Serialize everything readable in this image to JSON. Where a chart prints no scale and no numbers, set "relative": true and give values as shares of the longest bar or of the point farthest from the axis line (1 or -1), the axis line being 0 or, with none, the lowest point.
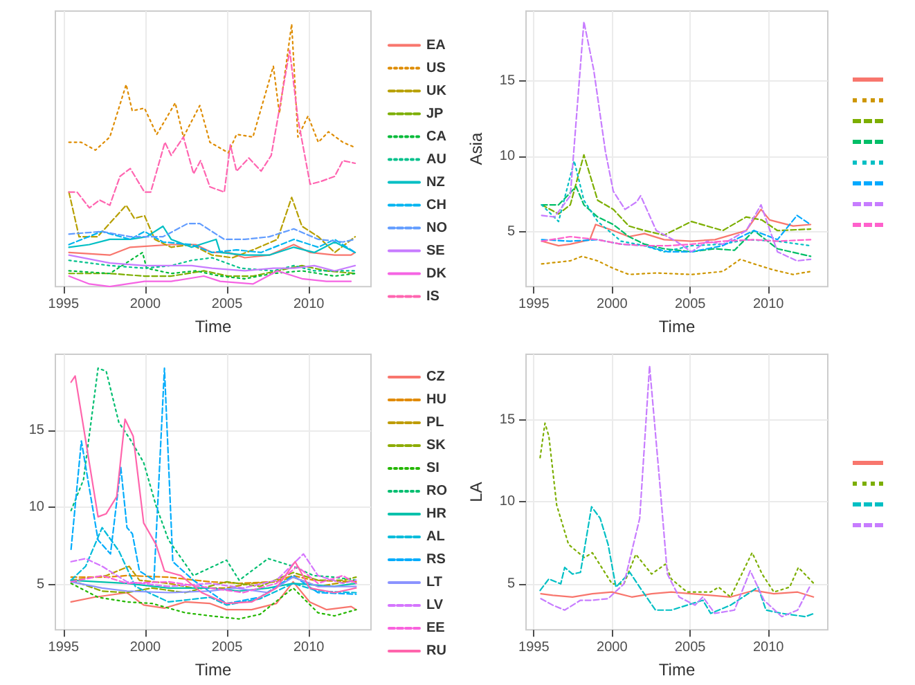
{
  "chart_data": [
    {
      "type": "line",
      "relative": true,
      "xlabel": "Time",
      "xlim": [
        1994.5,
        2013.8
      ],
      "xticks": [
        1995,
        2000,
        2005,
        2010
      ],
      "grid": "x",
      "legend": "right",
      "series": [
        {
          "name": "EA",
          "color": "#f8766d",
          "line_style": "solid",
          "x": [
            1995.33,
            1997.83,
            1999.08,
            2001.58,
            2003.08,
            2004.08,
            2005.08,
            2006.08,
            2007.58,
            2009.08,
            2010.08,
            2011.58,
            2012.58,
            2012.83
          ],
          "values": [
            0.13,
            0.12,
            0.15,
            0.16,
            0.16,
            0.13,
            0.13,
            0.11,
            0.12,
            0.16,
            0.13,
            0.12,
            0.12,
            0.13
          ]
        },
        {
          "name": "US",
          "color": "#de8c00",
          "line_style": "dotted",
          "x": [
            1995.33,
            1996.08,
            1996.95,
            1997.83,
            1998.83,
            1999.2,
            1999.95,
            2000.7,
            2001.83,
            2002.33,
            2003.33,
            2003.95,
            2005.08,
            2005.58,
            2006.58,
            2007.83,
            2008.2,
            2008.95,
            2009.33,
            2009.95,
            2010.58,
            2011.2,
            2012.08,
            2012.83
          ],
          "values": [
            0.55,
            0.55,
            0.52,
            0.57,
            0.77,
            0.67,
            0.68,
            0.58,
            0.7,
            0.57,
            0.69,
            0.55,
            0.51,
            0.58,
            0.57,
            0.84,
            0.66,
            1,
            0.57,
            0.65,
            0.55,
            0.59,
            0.55,
            0.53
          ]
        },
        {
          "name": "UK",
          "color": "#b79f00",
          "line_style": "dashed",
          "x": [
            1995.33,
            1995.95,
            1997.08,
            1998.83,
            1999.33,
            1999.95,
            2000.58,
            2001.58,
            2002.83,
            2004.08,
            2005.33,
            2006.58,
            2008.08,
            2008.95,
            2009.58,
            2010.58,
            2011.58,
            2012.83
          ],
          "values": [
            0.36,
            0.19,
            0.19,
            0.31,
            0.26,
            0.27,
            0.18,
            0.15,
            0.16,
            0.12,
            0.11,
            0.14,
            0.18,
            0.34,
            0.23,
            0.19,
            0.13,
            0.19
          ]
        },
        {
          "name": "JP",
          "color": "#7cae00",
          "line_style": "dashed",
          "x": [
            1995.33,
            1997.83,
            1999.95,
            2001.58,
            2003.58,
            2005.08,
            2006.58,
            2008.08,
            2009.58,
            2011.08,
            2012.83
          ],
          "values": [
            0.05,
            0.05,
            0.04,
            0.04,
            0.06,
            0.04,
            0.04,
            0.06,
            0.08,
            0.06,
            0.05
          ]
        },
        {
          "name": "CA",
          "color": "#00ba38",
          "line_style": "dotted",
          "x": [
            1995.33,
            1997.83,
            1999.83,
            2000.08,
            2001.58,
            2003.08,
            2004.58,
            2006.08,
            2007.83,
            2009.58,
            2011.58,
            2012.83
          ],
          "values": [
            0.06,
            0.05,
            0.13,
            0.07,
            0.05,
            0.06,
            0.04,
            0.03,
            0.05,
            0.06,
            0.04,
            0.05
          ]
        },
        {
          "name": "AU",
          "color": "#00c08b",
          "line_style": "dotted",
          "x": [
            1995.33,
            1997.83,
            1999.95,
            2001.58,
            2002.83,
            2004.08,
            2005.83,
            2007.83,
            2009.08,
            2010.33,
            2012.83
          ],
          "values": [
            0.1,
            0.08,
            0.07,
            0.08,
            0.1,
            0.11,
            0.07,
            0.06,
            0.08,
            0.06,
            0.06
          ]
        },
        {
          "name": "NZ",
          "color": "#00bfc4",
          "line_style": "solid",
          "x": [
            1995.33,
            1996.58,
            1997.83,
            1999.08,
            2000.08,
            2001.08,
            2001.58,
            2002.83,
            2004.33,
            2004.58,
            2006.08,
            2007.58,
            2009.08,
            2010.33,
            2011.58,
            2012.83
          ],
          "values": [
            0.15,
            0.16,
            0.18,
            0.18,
            0.19,
            0.23,
            0.18,
            0.15,
            0.18,
            0.13,
            0.12,
            0.12,
            0.15,
            0.13,
            0.17,
            0.13
          ]
        },
        {
          "name": "CH",
          "color": "#00b4f0",
          "line_style": "dashed",
          "x": [
            1995.33,
            1997.33,
            1999.08,
            1999.95,
            2001.08,
            2002.83,
            2004.08,
            2005.58,
            2007.08,
            2009.08,
            2010.58,
            2011.58,
            2012.83
          ],
          "values": [
            0.16,
            0.21,
            0.18,
            0.21,
            0.17,
            0.16,
            0.13,
            0.14,
            0.13,
            0.18,
            0.15,
            0.18,
            0.13
          ]
        },
        {
          "name": "NO",
          "color": "#619cff",
          "line_style": "dashed",
          "x": [
            1995.33,
            1997.33,
            1999.08,
            2001.08,
            2002.58,
            2003.33,
            2004.83,
            2006.08,
            2007.58,
            2009.08,
            2010.58,
            2012.08,
            2012.83
          ],
          "values": [
            0.2,
            0.21,
            0.19,
            0.19,
            0.24,
            0.24,
            0.18,
            0.18,
            0.19,
            0.22,
            0.18,
            0.17,
            0.18
          ]
        },
        {
          "name": "SE",
          "color": "#c77cff",
          "line_style": "solid",
          "x": [
            1995.33,
            1997.83,
            1999.95,
            2001.58,
            2002.83,
            2004.08,
            2006.08,
            2007.83,
            2009.08,
            2010.33,
            2011.58,
            2012.83
          ],
          "values": [
            0.12,
            0.09,
            0.08,
            0.08,
            0.08,
            0.07,
            0.06,
            0.07,
            0.07,
            0.08,
            0.06,
            0.08
          ]
        },
        {
          "name": "DK",
          "color": "#f564e3",
          "line_style": "solid",
          "x": [
            1995.33,
            1996.58,
            1997.83,
            1999.95,
            2001.58,
            2003.58,
            2004.58,
            2006.58,
            2008.08,
            2009.58,
            2011.08,
            2012.58
          ],
          "values": [
            0.04,
            0.01,
            0,
            0.02,
            0.02,
            0.04,
            0.02,
            0.01,
            0.06,
            0.03,
            0.02,
            0.02
          ]
        },
        {
          "name": "IS",
          "color": "#ff64b0",
          "line_style": "dashed",
          "x": [
            1995.33,
            1995.83,
            1996.58,
            1997.2,
            1997.83,
            1998.45,
            1999.08,
            1999.95,
            2000.33,
            2001.2,
            2001.58,
            2002.33,
            2002.95,
            2003.38,
            2003.95,
            2004.83,
            2005.2,
            2005.58,
            2006.33,
            2007.08,
            2007.7,
            2008.83,
            2009.33,
            2010.08,
            2010.7,
            2011.58,
            2012.08,
            2012.83
          ],
          "values": [
            0.36,
            0.36,
            0.3,
            0.33,
            0.31,
            0.42,
            0.45,
            0.36,
            0.36,
            0.55,
            0.5,
            0.57,
            0.43,
            0.48,
            0.38,
            0.36,
            0.54,
            0.44,
            0.49,
            0.44,
            0.5,
            0.9,
            0.64,
            0.39,
            0.4,
            0.42,
            0.48,
            0.47
          ]
        }
      ]
    },
    {
      "type": "line",
      "xlabel": "Time",
      "ylabel": "Asia",
      "xlim": [
        1994.5,
        2013.8
      ],
      "xticks": [
        1995,
        2000,
        2005,
        2010
      ],
      "ylim": [
        1.4,
        19.6
      ],
      "yticks": [
        5,
        10,
        15
      ],
      "grid": true,
      "legend": "right",
      "series": [
        {
          "color": "#f8766d",
          "line_style": "solid",
          "x": [
            1995.5,
            1996.58,
            1997.33,
            1998.58,
            1998.95,
            2000.08,
            2001.08,
            2002.08,
            2003.33,
            2005.08,
            2006.58,
            2008.58,
            2009.53,
            2010.08,
            2011.58,
            2012.7
          ],
          "values": [
            4.4,
            4.1,
            4.2,
            4.5,
            5.5,
            5.1,
            4.7,
            4.9,
            4.5,
            4.4,
            4.5,
            5.1,
            6.5,
            5.8,
            5.4,
            5.5
          ]
        },
        {
          "color": "#cd9600",
          "line_style": "dotted",
          "x": [
            1995.5,
            1997.33,
            1998.08,
            1999.08,
            2000.08,
            2001.08,
            2002.83,
            2005.08,
            2007.08,
            2008.2,
            2009.08,
            2010.33,
            2011.58,
            2012.7
          ],
          "values": [
            2.9,
            3.1,
            3.4,
            3.1,
            2.6,
            2.2,
            2.3,
            2.2,
            2.4,
            3.2,
            2.9,
            2.5,
            2.2,
            2.4
          ]
        },
        {
          "color": "#7cae00",
          "line_style": "dashed",
          "x": [
            1995.5,
            1996.58,
            1997.33,
            1998.2,
            1999.08,
            2000.08,
            2001.08,
            2002.08,
            2003.33,
            2005.08,
            2007.08,
            2008.58,
            2009.58,
            2010.58,
            2012.7
          ],
          "values": [
            6.8,
            6.2,
            6.8,
            10.1,
            7.1,
            6.5,
            5.4,
            5.1,
            4.8,
            5.7,
            5.1,
            6,
            5.8,
            5.1,
            5.2
          ]
        },
        {
          "color": "#00be67",
          "line_style": "dashed",
          "x": [
            1995.5,
            1996.58,
            1997.7,
            1998.2,
            1999.08,
            2000.08,
            2001.08,
            2002.08,
            2003.33,
            2005.08,
            2006.58,
            2007.83,
            2009.08,
            2010.58,
            2012.7
          ],
          "values": [
            6.8,
            6.8,
            8,
            6.8,
            6,
            5.5,
            4.7,
            4.2,
            3.9,
            3.7,
            3.9,
            3.8,
            5.1,
            3.9,
            3.4
          ]
        },
        {
          "color": "#00bfc4",
          "line_style": "dotted",
          "x": [
            1995.5,
            1996.58,
            1997.58,
            1998.2,
            1999.08,
            2000.58,
            2002.08,
            2003.33,
            2005.08,
            2007.08,
            2008.58,
            2010.58,
            2012.7
          ],
          "values": [
            6.8,
            5.7,
            9.7,
            7.1,
            5.7,
            4.4,
            4.1,
            3.7,
            4.1,
            4.2,
            4.5,
            4.4,
            4.1
          ]
        },
        {
          "color": "#00a9ff",
          "line_style": "dashed",
          "x": [
            1995.5,
            1997.33,
            1999.08,
            2000.58,
            2002.08,
            2003.58,
            2005.08,
            2007.08,
            2009.08,
            2010.58,
            2011.83,
            2012.7
          ],
          "values": [
            4.5,
            4.4,
            4.5,
            4.2,
            4.1,
            3.7,
            3.7,
            4.1,
            5.1,
            4.5,
            6.1,
            5.5
          ]
        },
        {
          "color": "#c77cff",
          "line_style": "dashed",
          "x": [
            1995.5,
            1996.33,
            1997.33,
            1998.2,
            1998.83,
            1999.58,
            2000.08,
            2000.83,
            2001.58,
            2001.83,
            2002.83,
            2004.08,
            2005.08,
            2006.08,
            2007.08,
            2008.58,
            2009.53,
            2010.58,
            2011.83,
            2012.7
          ],
          "values": [
            6.1,
            6,
            7.4,
            18.9,
            15.7,
            10.3,
            7.7,
            6.5,
            7,
            7.4,
            5.1,
            4.4,
            3.7,
            4.4,
            4.2,
            5.1,
            6.8,
            3.7,
            3.1,
            3.2
          ]
        },
        {
          "color": "#ff61cc",
          "line_style": "dashed",
          "x": [
            1995.5,
            1997.33,
            1999.08,
            2000.58,
            2002.08,
            2003.58,
            2005.08,
            2007.08,
            2009.08,
            2010.58,
            2012.7
          ],
          "values": [
            4.4,
            4.7,
            4.5,
            4.2,
            4.1,
            4.1,
            4.2,
            4.4,
            4.5,
            4.4,
            4.5
          ]
        }
      ]
    },
    {
      "type": "line",
      "xlabel": "Time",
      "xlim": [
        1994.5,
        2013.8
      ],
      "xticks": [
        1995,
        2000,
        2005,
        2010
      ],
      "ylim": [
        2.1,
        19.9
      ],
      "yticks": [
        5,
        10,
        15
      ],
      "grid": true,
      "legend": "right",
      "series": [
        {
          "name": "CZ",
          "color": "#f8766d",
          "line_style": "solid",
          "x": [
            1995.46,
            1996.85,
            1998.88,
            1999.9,
            2001.17,
            2002.44,
            2003.96,
            2004.97,
            2006.5,
            2008.02,
            2009.04,
            2010.05,
            2011.07,
            2012.59,
            2012.89
          ],
          "values": [
            3.9,
            4.2,
            4.5,
            3.7,
            3.5,
            3.9,
            3.8,
            3.4,
            3.4,
            3.8,
            5.2,
            3.9,
            3.4,
            3.6,
            3.4
          ]
        },
        {
          "name": "HU",
          "color": "#e18a00",
          "line_style": "dashed",
          "x": [
            1995.46,
            1997.61,
            1998.88,
            2001.42,
            2003.96,
            2005.74,
            2007.77,
            2009.04,
            2010.3,
            2012.89
          ],
          "values": [
            5.5,
            5.5,
            5.6,
            5.5,
            5.2,
            5.1,
            5.2,
            5.6,
            5.3,
            5.2
          ]
        },
        {
          "name": "PL",
          "color": "#be9c00",
          "line_style": "dashed",
          "x": [
            1995.46,
            1997.61,
            1999.01,
            1999.64,
            2001.42,
            2002.94,
            2004.97,
            2006.5,
            2008.02,
            2009.04,
            2010.56,
            2012.89
          ],
          "values": [
            5.3,
            5.6,
            6.2,
            5.3,
            5.1,
            4.8,
            4.8,
            5.1,
            5.2,
            5.5,
            4.9,
            5.3
          ]
        },
        {
          "name": "SK",
          "color": "#8cab00",
          "line_style": "dashed",
          "x": [
            1995.46,
            1997.36,
            1998.88,
            2000.41,
            2002.44,
            2004.97,
            2007.01,
            2009.04,
            2010.56,
            2012.08,
            2012.89
          ],
          "values": [
            5.3,
            4.6,
            4.5,
            4.8,
            4.5,
            5.2,
            4.9,
            5.8,
            5.3,
            5.3,
            5.5
          ]
        },
        {
          "name": "SI",
          "color": "#24b700",
          "line_style": "dotted",
          "x": [
            1995.46,
            1997.11,
            1998.88,
            2000.41,
            2002.44,
            2003.96,
            2005.74,
            2007.01,
            2009.04,
            2010.56,
            2011.57,
            2012.89
          ],
          "values": [
            5.1,
            4.2,
            3.9,
            3.8,
            3.2,
            3,
            2.8,
            3.1,
            4.8,
            3.2,
            3,
            3.4
          ]
        },
        {
          "name": "RO",
          "color": "#00be70",
          "line_style": "dotted",
          "x": [
            1995.46,
            1996.22,
            1997.11,
            1997.61,
            1998.38,
            1999.14,
            1999.9,
            2000.66,
            2001.42,
            2002.94,
            2004.97,
            2005.74,
            2007.51,
            2009.04,
            2010.3,
            2011.57,
            2012.89
          ],
          "values": [
            9.8,
            11.8,
            19,
            18.8,
            15.5,
            14.3,
            12.9,
            10.1,
            7.9,
            5.6,
            6.6,
            5.3,
            6.7,
            6.2,
            5.6,
            5.5,
            5.3
          ]
        },
        {
          "name": "HR",
          "color": "#00c1ab",
          "line_style": "solid",
          "x": [
            1995.46,
            1997.11,
            1998.88,
            2001.42,
            2003.96,
            2005.74,
            2007.51,
            2009.04,
            2011.57,
            2012.89
          ],
          "values": [
            5.3,
            5.2,
            5.1,
            4.8,
            4.8,
            4.6,
            4.8,
            5.1,
            4.9,
            5.1
          ]
        },
        {
          "name": "AL",
          "color": "#00bbda",
          "line_style": "dashed",
          "x": [
            1995.46,
            1996.35,
            1997.36,
            1998.38,
            1999.39,
            2001.42,
            2003.96,
            2004.97,
            2007.01,
            2009.04,
            2010.56,
            2012.89
          ],
          "values": [
            5.3,
            6.2,
            8.7,
            7.2,
            4.9,
            3.9,
            4.2,
            3.7,
            4.1,
            5.1,
            4.6,
            4.5
          ]
        },
        {
          "name": "RS",
          "color": "#00acfc",
          "line_style": "dashed",
          "x": [
            1995.46,
            1996.09,
            1997.11,
            1997.87,
            1998.5,
            1998.88,
            1999.21,
            1999.64,
            2000.53,
            2001.17,
            2001.68,
            2002.94,
            2004.97,
            2007.01,
            2009.04,
            2010.56,
            2012.89
          ],
          "values": [
            7.3,
            14.3,
            7.9,
            7,
            12.6,
            8.7,
            8.3,
            5.9,
            5.3,
            19,
            6.5,
            5.3,
            3.8,
            4.2,
            5.6,
            4.5,
            4.4
          ]
        },
        {
          "name": "LT",
          "color": "#8b93ff",
          "line_style": "solid",
          "x": [
            1995.46,
            1997.36,
            1998.88,
            2001.42,
            2003.96,
            2005.48,
            2007.51,
            2009.04,
            2010.56,
            2012.89
          ],
          "values": [
            5.2,
            4.8,
            4.6,
            4.5,
            4.6,
            4.8,
            4.5,
            5.5,
            4.9,
            4.9
          ]
        },
        {
          "name": "LV",
          "color": "#d575fe",
          "line_style": "dashed",
          "x": [
            1995.46,
            1996.35,
            1997.36,
            1998.88,
            2001.42,
            2003.96,
            2005.99,
            2008.02,
            2009.67,
            2010.56,
            2012.08,
            2012.89
          ],
          "values": [
            6.5,
            6.7,
            6.2,
            5.2,
            4.9,
            5.1,
            4.8,
            5.3,
            7,
            5.6,
            5.1,
            5.3
          ]
        },
        {
          "name": "EE",
          "color": "#f962dd",
          "line_style": "dashed",
          "x": [
            1995.46,
            1997.36,
            1998.88,
            2001.42,
            2003.96,
            2005.99,
            2008.02,
            2009.29,
            2010.56,
            2012.08,
            2012.89
          ],
          "values": [
            5.2,
            5.6,
            5.1,
            5.2,
            4.8,
            4.5,
            5.1,
            6.2,
            5.1,
            5.6,
            5.1
          ]
        },
        {
          "name": "RU",
          "color": "#ff65ac",
          "line_style": "solid",
          "x": [
            1995.46,
            1995.71,
            1996.22,
            1997.11,
            1997.61,
            1998.25,
            1998.76,
            1999.26,
            1999.9,
            2000.66,
            2001.17,
            2002.18,
            2003.45,
            2004.97,
            2006.5,
            2008.02,
            2009.16,
            2010.05,
            2011.57,
            2012.89
          ],
          "values": [
            18.1,
            18.5,
            15.2,
            9.4,
            9.6,
            10.7,
            15.7,
            14.6,
            9,
            7.6,
            5.9,
            5.6,
            4.5,
            3.8,
            3.9,
            4.8,
            6.5,
            4.8,
            4.5,
            4.8
          ]
        }
      ]
    },
    {
      "type": "line",
      "xlabel": "Time",
      "ylabel": "LA",
      "xlim": [
        1994.5,
        2013.8
      ],
      "xticks": [
        1995,
        2000,
        2005,
        2010
      ],
      "ylim": [
        2.2,
        19.0
      ],
      "yticks": [
        5,
        10,
        15
      ],
      "grid": true,
      "legend": "right",
      "series": [
        {
          "color": "#f8766d",
          "line_style": "solid",
          "x": [
            1995.45,
            1996.21,
            1997.47,
            1998.74,
            2000,
            2001.26,
            2002.53,
            2003.79,
            2005.05,
            2006.31,
            2007.58,
            2009.09,
            2010.35,
            2011.87,
            2012.88
          ],
          "values": [
            4.4,
            4.3,
            4.2,
            4.4,
            4.5,
            4.2,
            4.4,
            4.5,
            4.4,
            4.3,
            4.2,
            4.6,
            4.4,
            4.5,
            4.2
          ]
        },
        {
          "color": "#7cae00",
          "line_style": "dotted",
          "x": [
            1995.4,
            1995.71,
            1995.96,
            1996.46,
            1997.22,
            1998.23,
            1998.74,
            2000,
            2000.76,
            2001.52,
            2002.53,
            2003.41,
            2003.79,
            2004.8,
            2006.31,
            2006.82,
            2007.58,
            2008.96,
            2009.6,
            2010.35,
            2011.36,
            2011.92,
            2012.93
          ],
          "values": [
            12.7,
            14.8,
            14,
            9.8,
            7.4,
            6.6,
            6.9,
            5,
            5,
            6.8,
            5.6,
            6.2,
            5.3,
            4.5,
            4.5,
            4.8,
            4.2,
            6.9,
            5.6,
            4.5,
            4.8,
            6,
            5
          ]
        },
        {
          "color": "#00bfc4",
          "line_style": "dashed",
          "x": [
            1995.4,
            1995.96,
            1996.72,
            1996.97,
            1997.47,
            1997.98,
            1998.69,
            1999.24,
            1999.75,
            2000.25,
            2001.14,
            2001.77,
            2002.78,
            2003.79,
            2004.8,
            2005.81,
            2006.31,
            2007.58,
            2009.34,
            2009.85,
            2010.86,
            2012.37,
            2012.93
          ],
          "values": [
            4.6,
            5.3,
            5,
            6,
            5.6,
            5.7,
            9.7,
            9,
            7.4,
            4.8,
            5.7,
            4.8,
            3.4,
            3.4,
            3.7,
            4,
            3.2,
            3.7,
            4.8,
            3.4,
            3.2,
            3,
            3.2
          ]
        },
        {
          "color": "#c77cff",
          "line_style": "dashed",
          "x": [
            1995.45,
            1996.21,
            1996.97,
            1997.98,
            1998.74,
            1999.75,
            2000.76,
            2001.77,
            2002.4,
            2003.03,
            2003.54,
            2004.29,
            2005.3,
            2005.81,
            2006.57,
            2007.83,
            2008.84,
            2009.72,
            2010.86,
            2011.87,
            2012.63
          ],
          "values": [
            4.1,
            3.7,
            3.4,
            4,
            4,
            4.1,
            5,
            9,
            18.3,
            11.4,
            5.6,
            4.2,
            3.7,
            4.2,
            3.2,
            3.4,
            5.8,
            4,
            3,
            3.4,
            4.8
          ]
        }
      ]
    }
  ]
}
